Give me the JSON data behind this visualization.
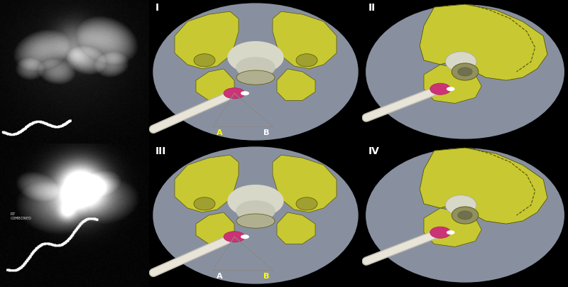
{
  "figure_bg": "#000000",
  "figsize": [
    8.0,
    4.04
  ],
  "dpi": 100,
  "panel_labels": [
    "I",
    "II",
    "III",
    "IV"
  ],
  "label_color": "#ffffff",
  "oval_color": "#8890a0",
  "bone_color": "#c8c832",
  "bone_outline": "#555500",
  "pink_color": "#cc3377",
  "white_color": "#ffffff",
  "sacrum_color": "#d8d8c8",
  "catheter_color": "#e8e4d8",
  "catheter_outline": "#c0bcb0",
  "AB_yellow": "#ffff00",
  "AB_white": "#ffffff",
  "xray_text": "RT\nCOMBINED"
}
